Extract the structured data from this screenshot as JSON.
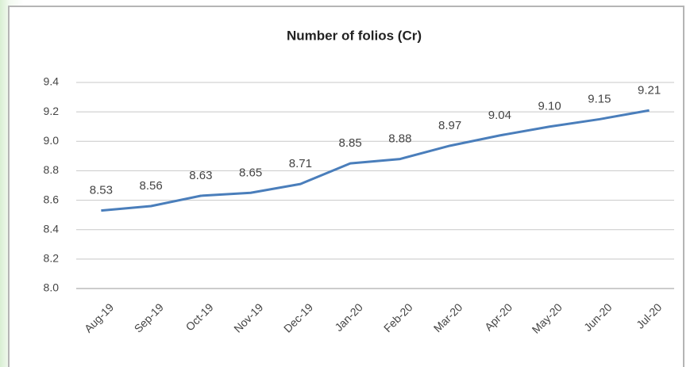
{
  "chart_data": {
    "type": "line",
    "title": "Number of folios (Cr)",
    "categories": [
      "Aug-19",
      "Sep-19",
      "Oct-19",
      "Nov-19",
      "Dec-19",
      "Jan-20",
      "Feb-20",
      "Mar-20",
      "Apr-20",
      "May-20",
      "Jun-20",
      "Jul-20"
    ],
    "values": [
      8.53,
      8.56,
      8.63,
      8.65,
      8.71,
      8.85,
      8.88,
      8.97,
      9.04,
      9.1,
      9.15,
      9.21
    ],
    "value_labels": [
      "8.53",
      "8.56",
      "8.63",
      "8.65",
      "8.71",
      "8.85",
      "8.88",
      "8.97",
      "9.04",
      "9.10",
      "9.15",
      "9.21"
    ],
    "color": "#4a7ebb",
    "ylim": [
      8.0,
      9.4
    ],
    "yticks": [
      {
        "value": 8,
        "label": "8.0"
      },
      8.2,
      8.4,
      8.6,
      8.8,
      {
        "value": 9,
        "label": "9.0"
      },
      9.2,
      9.4
    ],
    "grid": true
  }
}
